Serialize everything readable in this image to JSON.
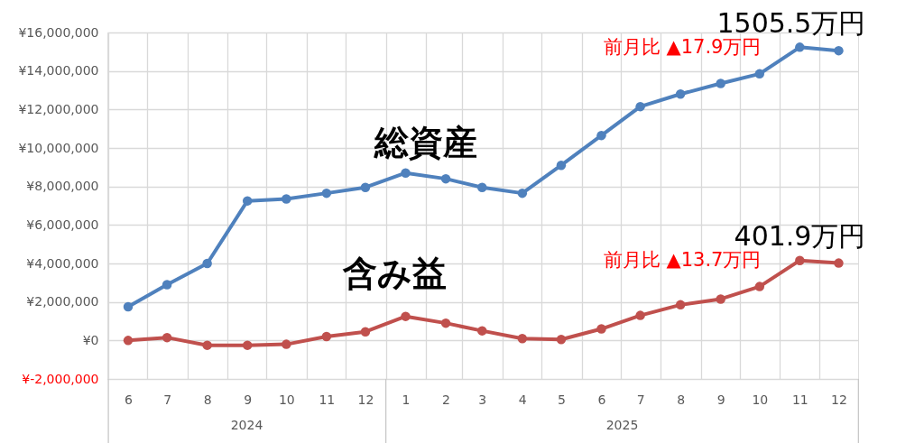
{
  "chart_data": {
    "type": "line",
    "x": [
      "2024-06",
      "2024-07",
      "2024-08",
      "2024-09",
      "2024-10",
      "2024-11",
      "2024-12",
      "2025-01",
      "2025-02",
      "2025-03",
      "2025-04",
      "2025-05",
      "2025-06",
      "2025-07",
      "2025-08",
      "2025-09",
      "2025-10",
      "2025-11",
      "2025-12"
    ],
    "xlim": [
      "2024-05-16",
      "2025-12-16"
    ],
    "xticks": [
      {
        "value": "2024-06",
        "label": "6"
      },
      {
        "value": "2024-07",
        "label": "7"
      },
      {
        "value": "2024-08",
        "label": "8"
      },
      {
        "value": "2024-09",
        "label": "9"
      },
      {
        "value": "2024-10",
        "label": "10"
      },
      {
        "value": "2024-11",
        "label": "11"
      },
      {
        "value": "2024-12",
        "label": "12"
      },
      {
        "value": "2025-01",
        "label": "1"
      },
      {
        "value": "2025-02",
        "label": "2"
      },
      {
        "value": "2025-03",
        "label": "3"
      },
      {
        "value": "2025-04",
        "label": "4"
      },
      {
        "value": "2025-05",
        "label": "5"
      },
      {
        "value": "2025-06",
        "label": "6"
      },
      {
        "value": "2025-07",
        "label": "7"
      },
      {
        "value": "2025-08",
        "label": "8"
      },
      {
        "value": "2025-09",
        "label": "9"
      },
      {
        "value": "2025-10",
        "label": "10"
      },
      {
        "value": "2025-11",
        "label": "11"
      },
      {
        "value": "2025-12",
        "label": "12"
      }
    ],
    "ylim": [
      -2000000,
      16000000
    ],
    "yticks": [
      {
        "value": -2000000,
        "label": "¥-2,000,000"
      },
      {
        "value": 0,
        "label": "¥0"
      },
      {
        "value": 2000000,
        "label": "¥2,000,000"
      },
      {
        "value": 4000000,
        "label": "¥4,000,000"
      },
      {
        "value": 6000000,
        "label": "¥6,000,000"
      },
      {
        "value": 8000000,
        "label": "¥8,000,000"
      },
      {
        "value": 10000000,
        "label": "¥10,000,000"
      },
      {
        "value": 12000000,
        "label": "¥12,000,000"
      },
      {
        "value": 14000000,
        "label": "¥14,000,000"
      },
      {
        "value": 16000000,
        "label": "¥16,000,000"
      }
    ],
    "grid": true,
    "marker": "circle",
    "line_style": "solid",
    "series": [
      {
        "name": "総資産",
        "color": "#4f81bd",
        "values": [
          1750000,
          2900000,
          4000000,
          7250000,
          7350000,
          7650000,
          7950000,
          8700000,
          8400000,
          7950000,
          7650000,
          9100000,
          10650000,
          12150000,
          12800000,
          13350000,
          13850000,
          15234000,
          15055000
        ]
      },
      {
        "name": "含み益",
        "color": "#c0504d",
        "values": [
          0,
          150000,
          -250000,
          -250000,
          -200000,
          200000,
          450000,
          1250000,
          900000,
          500000,
          100000,
          50000,
          600000,
          1300000,
          1850000,
          2150000,
          2800000,
          4156000,
          4019000
        ]
      }
    ],
    "annotations": [
      "2024",
      "2025",
      "1505.5万円",
      "前月比 ▲17.9万円",
      "401.9万円",
      "前月比 ▲13.7万円"
    ]
  }
}
